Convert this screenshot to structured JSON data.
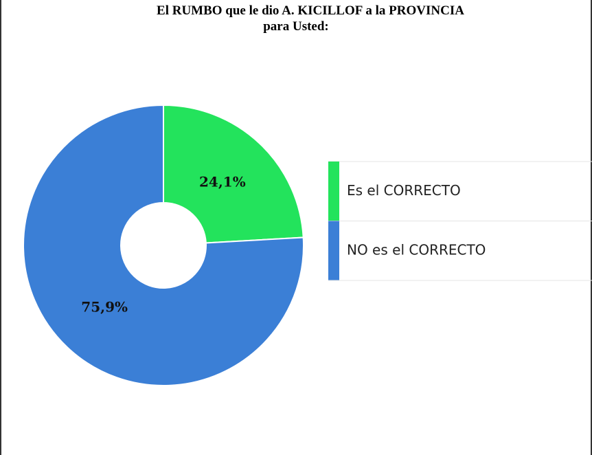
{
  "chart_data": {
    "type": "donut",
    "title": "El RUMBO que le dio A. KICILLOF a la PROVINCIA",
    "subtitle": "para Usted:",
    "categories": [
      "Es el CORRECTO",
      "NO es el CORRECTO"
    ],
    "values": [
      24.1,
      75.9
    ],
    "value_labels": [
      "24,1%",
      "75,9%"
    ],
    "colors": [
      "#23e35c",
      "#3b7fd6"
    ],
    "legend": "right"
  }
}
